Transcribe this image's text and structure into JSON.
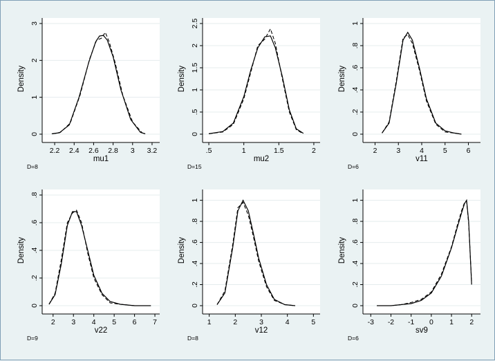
{
  "chart_data": [
    {
      "type": "line",
      "xlabel": "mu1",
      "ylabel": "Density",
      "note": "D=8",
      "xlim": [
        2.1,
        3.25
      ],
      "ylim": [
        0,
        3
      ],
      "xticks": [
        2.2,
        2.4,
        2.6,
        2.8,
        3,
        3.2
      ],
      "xtick_labels": [
        "2.2",
        "2.4",
        "2.6",
        "2.8",
        "3",
        "3.2"
      ],
      "yticks": [
        0,
        1,
        2,
        3
      ],
      "ytick_labels": [
        "0",
        "1",
        "2",
        "3"
      ],
      "series": [
        {
          "style": "solid",
          "x": [
            2.17,
            2.25,
            2.35,
            2.45,
            2.55,
            2.62,
            2.66,
            2.7,
            2.74,
            2.8,
            2.88,
            2.98,
            3.08,
            3.13
          ],
          "y": [
            0.01,
            0.04,
            0.25,
            1.0,
            1.95,
            2.5,
            2.66,
            2.68,
            2.55,
            2.1,
            1.2,
            0.4,
            0.05,
            0.01
          ]
        },
        {
          "style": "dash",
          "x": [
            2.18,
            2.26,
            2.36,
            2.46,
            2.56,
            2.63,
            2.68,
            2.72,
            2.76,
            2.82,
            2.9,
            3.0,
            3.1
          ],
          "y": [
            0.01,
            0.05,
            0.3,
            1.05,
            2.05,
            2.55,
            2.6,
            2.76,
            2.5,
            1.95,
            1.05,
            0.33,
            0.03
          ]
        }
      ]
    },
    {
      "type": "line",
      "xlabel": "mu2",
      "ylabel": "Density",
      "note": "D=15",
      "xlim": [
        0.45,
        2.05
      ],
      "ylim": [
        0,
        2.5
      ],
      "xticks": [
        0.5,
        1,
        1.5,
        2
      ],
      "xtick_labels": [
        ".5",
        "1",
        "1.5",
        "2"
      ],
      "yticks": [
        0,
        0.5,
        1,
        1.5,
        2,
        2.5
      ],
      "ytick_labels": [
        "0",
        ".5",
        "1",
        "1.5",
        "2",
        "2.5"
      ],
      "series": [
        {
          "style": "solid",
          "x": [
            0.5,
            0.7,
            0.85,
            1.0,
            1.1,
            1.2,
            1.3,
            1.38,
            1.45,
            1.55,
            1.65,
            1.75,
            1.85
          ],
          "y": [
            0.01,
            0.06,
            0.25,
            0.85,
            1.45,
            1.95,
            2.2,
            2.22,
            1.95,
            1.3,
            0.55,
            0.12,
            0.02
          ]
        },
        {
          "style": "dash",
          "x": [
            0.5,
            0.7,
            0.85,
            1.0,
            1.1,
            1.2,
            1.3,
            1.38,
            1.45,
            1.55,
            1.65,
            1.75,
            1.85
          ],
          "y": [
            0.01,
            0.05,
            0.22,
            0.8,
            1.4,
            2.0,
            2.15,
            2.38,
            2.05,
            1.25,
            0.5,
            0.1,
            0.01
          ]
        }
      ]
    },
    {
      "type": "line",
      "xlabel": "v11",
      "ylabel": "Density",
      "note": "D=6",
      "xlim": [
        1.6,
        6.4
      ],
      "ylim": [
        0,
        1
      ],
      "xticks": [
        2,
        3,
        4,
        5,
        6
      ],
      "xtick_labels": [
        "2",
        "3",
        "4",
        "5",
        "6"
      ],
      "yticks": [
        0,
        0.2,
        0.4,
        0.6,
        0.8,
        1
      ],
      "ytick_labels": [
        "0",
        ".2",
        ".4",
        ".6",
        ".8",
        "1"
      ],
      "series": [
        {
          "style": "solid",
          "x": [
            2.3,
            2.6,
            2.9,
            3.2,
            3.4,
            3.6,
            3.9,
            4.2,
            4.6,
            5.0,
            5.4,
            5.7
          ],
          "y": [
            0.01,
            0.1,
            0.45,
            0.85,
            0.92,
            0.85,
            0.6,
            0.32,
            0.1,
            0.03,
            0.01,
            0.0
          ]
        },
        {
          "style": "dash",
          "x": [
            2.3,
            2.6,
            2.9,
            3.2,
            3.4,
            3.6,
            3.9,
            4.2,
            4.6,
            5.0,
            5.4,
            5.7
          ],
          "y": [
            0.01,
            0.11,
            0.47,
            0.87,
            0.9,
            0.82,
            0.58,
            0.3,
            0.09,
            0.02,
            0.01,
            0.0
          ]
        }
      ]
    },
    {
      "type": "line",
      "xlabel": "v22",
      "ylabel": "Density",
      "note": "D=9",
      "xlim": [
        1.6,
        7.1
      ],
      "ylim": [
        0,
        0.8
      ],
      "xticks": [
        2,
        3,
        4,
        5,
        6,
        7
      ],
      "xtick_labels": [
        "2",
        "3",
        "4",
        "5",
        "6",
        "7"
      ],
      "yticks": [
        0,
        0.2,
        0.4,
        0.6,
        0.8
      ],
      "ytick_labels": [
        "0",
        ".2",
        ".4",
        ".6",
        ".8"
      ],
      "series": [
        {
          "style": "solid",
          "x": [
            1.8,
            2.1,
            2.4,
            2.7,
            2.95,
            3.15,
            3.4,
            3.7,
            4.0,
            4.4,
            4.8,
            5.3,
            6.0,
            6.8
          ],
          "y": [
            0.01,
            0.08,
            0.3,
            0.58,
            0.68,
            0.68,
            0.58,
            0.4,
            0.22,
            0.09,
            0.03,
            0.01,
            0.0,
            0.0
          ]
        },
        {
          "style": "dash",
          "x": [
            1.8,
            2.1,
            2.4,
            2.7,
            2.95,
            3.15,
            3.4,
            3.7,
            4.0,
            4.4,
            4.8,
            5.3,
            6.0,
            6.8
          ],
          "y": [
            0.01,
            0.09,
            0.33,
            0.6,
            0.67,
            0.69,
            0.6,
            0.38,
            0.2,
            0.08,
            0.02,
            0.01,
            0.0,
            0.0
          ]
        }
      ]
    },
    {
      "type": "line",
      "xlabel": "v12",
      "ylabel": "Density",
      "note": "D=8",
      "xlim": [
        0.85,
        5.15
      ],
      "ylim": [
        0,
        1.05
      ],
      "xticks": [
        1,
        2,
        3,
        4,
        5
      ],
      "xtick_labels": [
        "1",
        "2",
        "3",
        "4",
        "5"
      ],
      "yticks": [
        0,
        0.2,
        0.4,
        0.6,
        0.8,
        1
      ],
      "ytick_labels": [
        "0",
        ".2",
        ".4",
        ".6",
        ".8",
        "1"
      ],
      "series": [
        {
          "style": "solid",
          "x": [
            1.3,
            1.6,
            1.9,
            2.1,
            2.3,
            2.5,
            2.7,
            2.9,
            3.2,
            3.5,
            3.9,
            4.3
          ],
          "y": [
            0.01,
            0.12,
            0.55,
            0.9,
            1.0,
            0.9,
            0.68,
            0.45,
            0.2,
            0.06,
            0.01,
            0.0
          ]
        },
        {
          "style": "dash",
          "x": [
            1.3,
            1.6,
            1.9,
            2.1,
            2.3,
            2.5,
            2.7,
            2.9,
            3.2,
            3.5,
            3.9,
            4.3
          ],
          "y": [
            0.01,
            0.14,
            0.58,
            0.93,
            0.98,
            0.86,
            0.65,
            0.42,
            0.18,
            0.05,
            0.01,
            0.0
          ]
        }
      ]
    },
    {
      "type": "line",
      "xlabel": "sv9",
      "ylabel": "Density",
      "note": "D=6",
      "xlim": [
        -3.25,
        2.3
      ],
      "ylim": [
        0,
        1.05
      ],
      "xticks": [
        -3,
        -2,
        -1,
        0,
        1,
        2
      ],
      "xtick_labels": [
        "-3",
        "-2",
        "-1",
        "0",
        "1",
        "2"
      ],
      "yticks": [
        0,
        0.2,
        0.4,
        0.6,
        0.8,
        1
      ],
      "ytick_labels": [
        "0",
        ".2",
        ".4",
        ".6",
        ".8",
        "1"
      ],
      "series": [
        {
          "style": "solid",
          "x": [
            -2.7,
            -2.0,
            -1.5,
            -1.0,
            -0.5,
            0.0,
            0.5,
            1.0,
            1.3,
            1.5,
            1.65,
            1.75,
            1.85,
            2.0
          ],
          "y": [
            0.0,
            0.0,
            0.01,
            0.02,
            0.05,
            0.12,
            0.28,
            0.55,
            0.75,
            0.88,
            0.97,
            1.0,
            0.8,
            0.2
          ]
        },
        {
          "style": "dash",
          "x": [
            -2.7,
            -2.0,
            -1.5,
            -1.0,
            -0.5,
            0.0,
            0.5,
            1.0,
            1.3,
            1.5,
            1.65,
            1.75,
            1.85,
            2.0
          ],
          "y": [
            0.0,
            0.0,
            0.01,
            0.03,
            0.06,
            0.13,
            0.3,
            0.56,
            0.77,
            0.9,
            0.98,
            0.99,
            0.78,
            0.22
          ]
        }
      ]
    }
  ]
}
